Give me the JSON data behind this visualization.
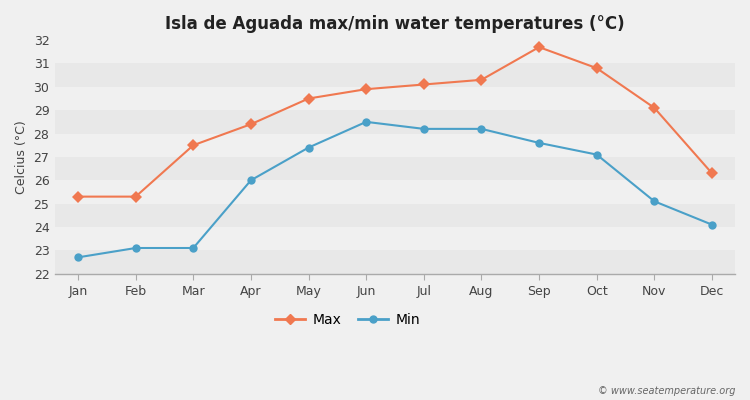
{
  "title": "Isla de Aguada max/min water temperatures (°C)",
  "months": [
    "Jan",
    "Feb",
    "Mar",
    "Apr",
    "May",
    "Jun",
    "Jul",
    "Aug",
    "Sep",
    "Oct",
    "Nov",
    "Dec"
  ],
  "max_temps": [
    25.3,
    25.3,
    27.5,
    28.4,
    29.5,
    29.9,
    30.1,
    30.3,
    31.7,
    30.8,
    29.1,
    26.3
  ],
  "min_temps": [
    22.7,
    23.1,
    23.1,
    26.0,
    27.4,
    28.5,
    28.2,
    28.2,
    27.6,
    27.1,
    25.1,
    24.1
  ],
  "max_color": "#f07850",
  "min_color": "#4aa0c8",
  "ylabel": "Celcius (°C)",
  "ylim": [
    22,
    32
  ],
  "yticks": [
    22,
    23,
    24,
    25,
    26,
    27,
    28,
    29,
    30,
    31,
    32
  ],
  "background_color": "#f0f0f0",
  "plot_bg_color": "#f0f0f0",
  "band_colors": [
    "#e8e8e8",
    "#f0f0f0"
  ],
  "legend_max": "Max",
  "legend_min": "Min",
  "watermark": "© www.seatemperature.org"
}
